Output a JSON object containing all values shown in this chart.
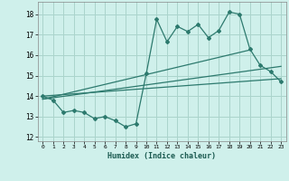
{
  "xlabel": "Humidex (Indice chaleur)",
  "bg_color": "#cff0eb",
  "grid_color": "#aad4cc",
  "line_color": "#2d7a6e",
  "xlim": [
    -0.5,
    23.5
  ],
  "ylim": [
    11.8,
    18.6
  ],
  "yticks": [
    12,
    13,
    14,
    15,
    16,
    17,
    18
  ],
  "xticks": [
    0,
    1,
    2,
    3,
    4,
    5,
    6,
    7,
    8,
    9,
    10,
    11,
    12,
    13,
    14,
    15,
    16,
    17,
    18,
    19,
    20,
    21,
    22,
    23
  ],
  "line1_x": [
    0,
    1,
    2,
    3,
    4,
    5,
    6,
    7,
    8,
    9,
    10,
    11,
    12,
    13,
    14,
    15,
    16,
    17,
    18,
    19,
    20,
    21,
    22,
    23
  ],
  "line1_y": [
    14.0,
    13.8,
    13.2,
    13.3,
    13.2,
    12.9,
    13.0,
    12.8,
    12.5,
    12.65,
    15.1,
    17.75,
    16.65,
    17.4,
    17.15,
    17.5,
    16.85,
    17.2,
    18.1,
    18.0,
    16.3,
    15.5,
    15.2,
    14.7
  ],
  "line2_x": [
    0,
    23
  ],
  "line2_y": [
    14.0,
    14.85
  ],
  "line3_x": [
    0,
    20
  ],
  "line3_y": [
    13.85,
    16.25
  ],
  "line4_x": [
    0,
    23
  ],
  "line4_y": [
    13.85,
    15.45
  ]
}
